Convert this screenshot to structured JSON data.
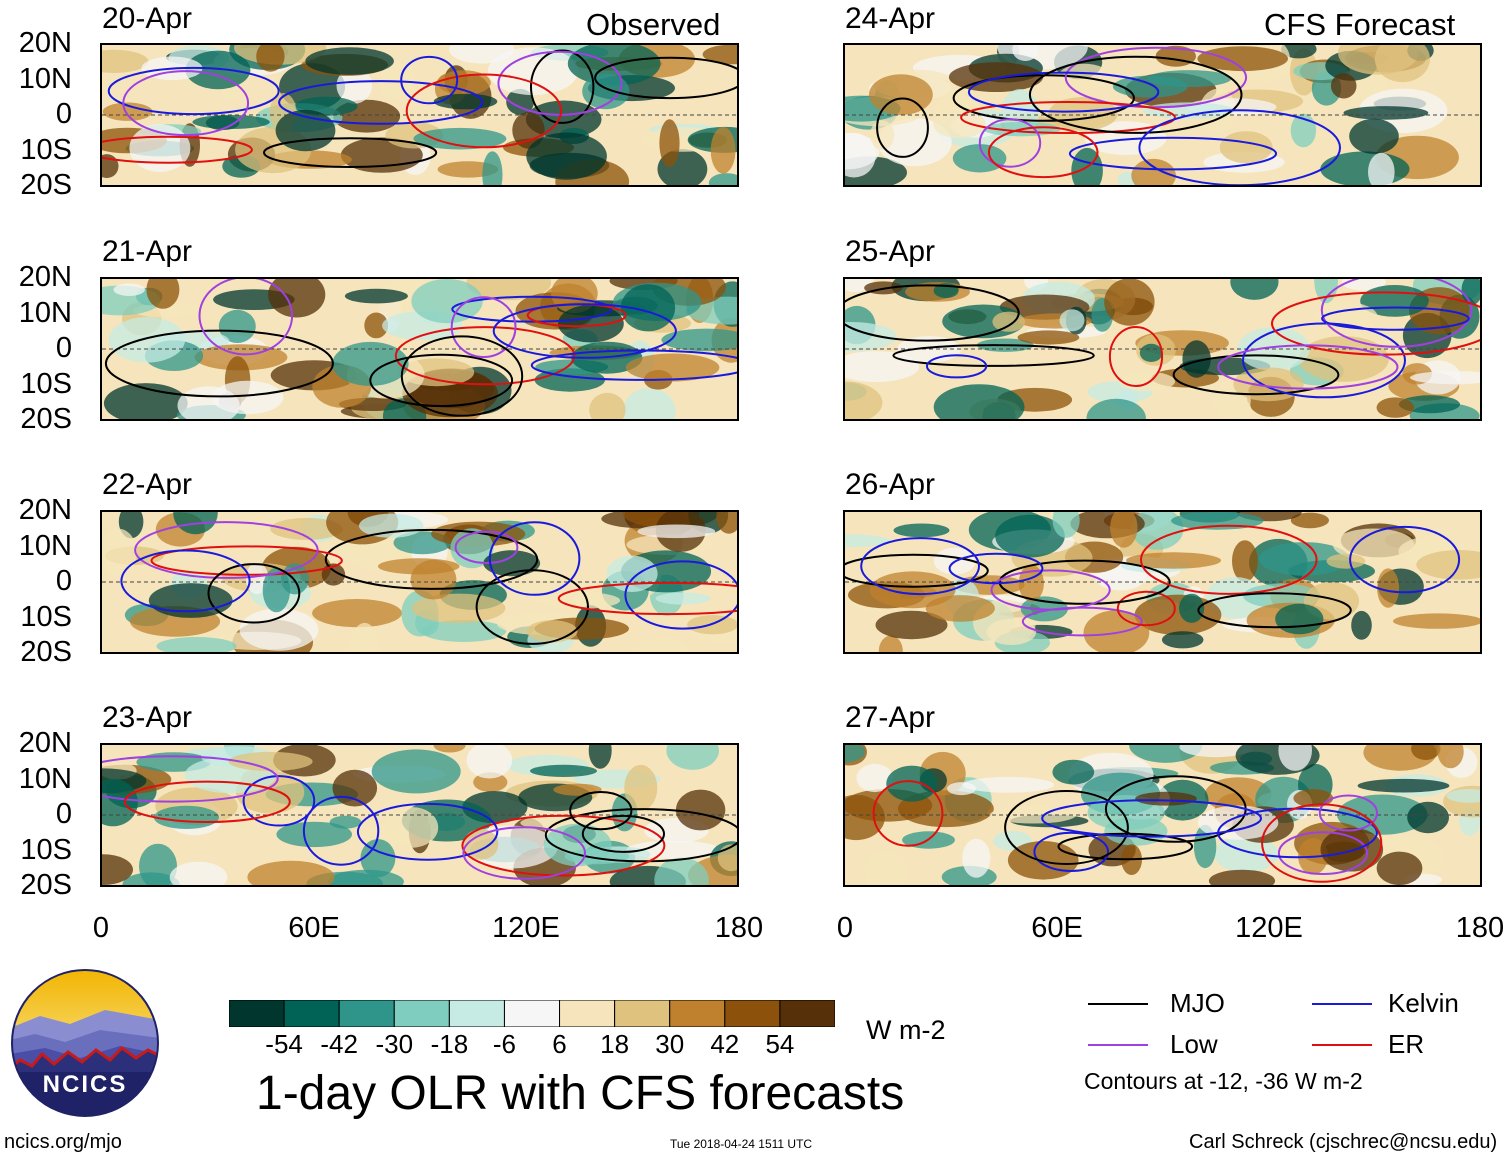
{
  "figure": {
    "title": "1-day OLR with CFS forecasts",
    "left_header": "Observed",
    "right_header": "CFS Forecast",
    "lat_labels": [
      "20N",
      "10N",
      "0",
      "10S",
      "20S"
    ],
    "lon_labels": [
      "0",
      "60E",
      "120E",
      "180"
    ],
    "panels": [
      {
        "date": "20-Apr",
        "kind": "Observed"
      },
      {
        "date": "21-Apr",
        "kind": "Observed"
      },
      {
        "date": "22-Apr",
        "kind": "Observed"
      },
      {
        "date": "23-Apr",
        "kind": "Observed"
      },
      {
        "date": "24-Apr",
        "kind": "CFS Forecast"
      },
      {
        "date": "25-Apr",
        "kind": "CFS Forecast"
      },
      {
        "date": "26-Apr",
        "kind": "CFS Forecast"
      },
      {
        "date": "27-Apr",
        "kind": "CFS Forecast"
      }
    ]
  },
  "colorbar": {
    "labels": [
      "-54",
      "-42",
      "-30",
      "-18",
      "-6",
      "6",
      "18",
      "30",
      "42",
      "54"
    ],
    "colors": [
      "#00362d",
      "#006356",
      "#2f958a",
      "#7fcdbe",
      "#c5ebe4",
      "#f6f6f6",
      "#f6e5bc",
      "#dfc27d",
      "#bf812d",
      "#8c510a",
      "#553008"
    ],
    "units": "W m-2"
  },
  "legend": {
    "items": [
      {
        "label": "MJO",
        "color": "#000000"
      },
      {
        "label": "Kelvin",
        "color": "#1a1adc"
      },
      {
        "label": "Low",
        "color": "#a040e0"
      },
      {
        "label": "ER",
        "color": "#e01010"
      }
    ],
    "note": "Contours at -12, -36 W m-2"
  },
  "logo": {
    "text": "NCICS"
  },
  "footer": {
    "url": "ncics.org/mjo",
    "timestamp": "Tue 2018-04-24 1511 UTC",
    "credit": "Carl Schreck (cjschrec@ncsu.edu)"
  }
}
